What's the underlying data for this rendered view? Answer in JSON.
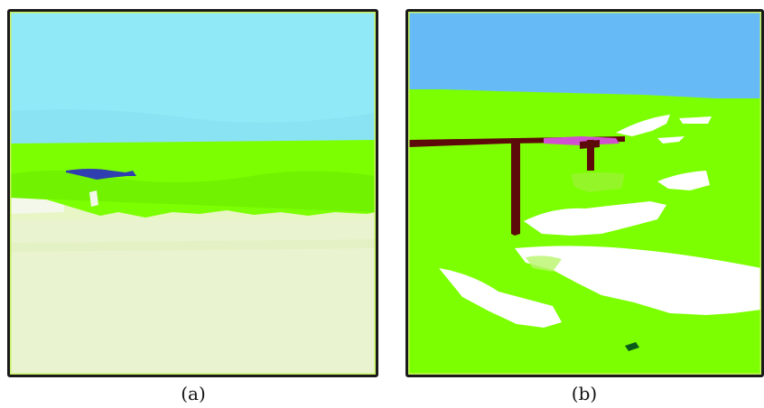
{
  "captions": {
    "a": "(a)",
    "b": "(b)"
  },
  "colors": {
    "sky_a": "#8fe9f6",
    "forest": "#7cff00",
    "field_a": "#e9f6c8",
    "bird_a": "#2f3fb0",
    "sky_b": "#66bbf7",
    "ground_b": "#7cff00",
    "snow_b": "#ffffff",
    "pole_b": "#5c0a0a",
    "magenta_b": "#d14fd1",
    "dark_green_b": "#0a5a1a",
    "frame_edge": "#c8f060"
  }
}
